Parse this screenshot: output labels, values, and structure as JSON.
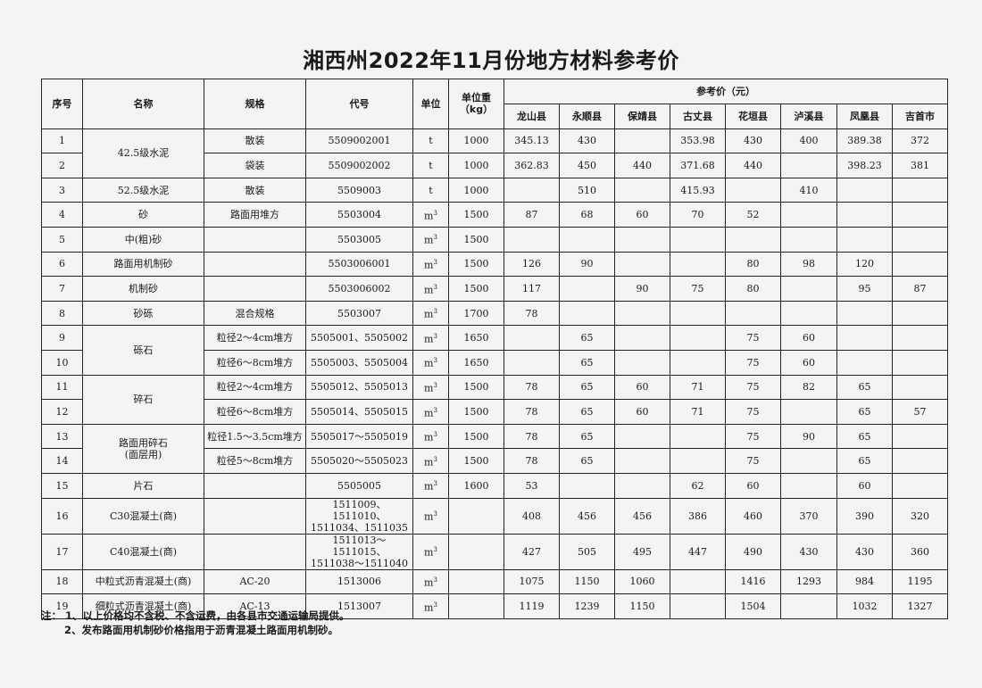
{
  "title": "湘西州2022年11月份地方材料参考价",
  "headers": {
    "seq": "序号",
    "name": "名称",
    "spec": "规格",
    "code": "代号",
    "unit": "单位",
    "unit_weight": "单位重\n（kg）",
    "price_group": "参考价（元）",
    "counties": [
      "龙山县",
      "永顺县",
      "保靖县",
      "古丈县",
      "花垣县",
      "泸溪县",
      "凤凰县",
      "吉首市"
    ]
  },
  "rows": [
    {
      "seq": "1",
      "name": "42.5级水泥",
      "spec": "散装",
      "code": "5509002001",
      "unit": "t",
      "weight": "1000",
      "prices": [
        "345.13",
        "430",
        "",
        "353.98",
        "430",
        "400",
        "389.38",
        "372"
      ]
    },
    {
      "seq": "2",
      "name": null,
      "spec": "袋装",
      "code": "5509002002",
      "unit": "t",
      "weight": "1000",
      "prices": [
        "362.83",
        "450",
        "440",
        "371.68",
        "440",
        "",
        "398.23",
        "381"
      ]
    },
    {
      "seq": "3",
      "name": "52.5级水泥",
      "spec": "散装",
      "code": "5509003",
      "unit": "t",
      "weight": "1000",
      "prices": [
        "",
        "510",
        "",
        "415.93",
        "",
        "410",
        "",
        ""
      ]
    },
    {
      "seq": "4",
      "name": "砂",
      "spec": "路面用堆方",
      "code": "5503004",
      "unit": "m3",
      "weight": "1500",
      "prices": [
        "87",
        "68",
        "60",
        "70",
        "52",
        "",
        "",
        ""
      ]
    },
    {
      "seq": "5",
      "name": "中(粗)砂",
      "spec": "",
      "code": "5503005",
      "unit": "m3",
      "weight": "1500",
      "prices": [
        "",
        "",
        "",
        "",
        "",
        "",
        "",
        ""
      ]
    },
    {
      "seq": "6",
      "name": "路面用机制砂",
      "spec": "",
      "code": "5503006001",
      "unit": "m3",
      "weight": "1500",
      "prices": [
        "126",
        "90",
        "",
        "",
        "80",
        "98",
        "120",
        ""
      ]
    },
    {
      "seq": "7",
      "name": "机制砂",
      "spec": "",
      "code": "5503006002",
      "unit": "m3",
      "weight": "1500",
      "prices": [
        "117",
        "",
        "90",
        "75",
        "80",
        "",
        "95",
        "87"
      ]
    },
    {
      "seq": "8",
      "name": "砂砾",
      "spec": "混合规格",
      "code": "5503007",
      "unit": "m3",
      "weight": "1700",
      "prices": [
        "78",
        "",
        "",
        "",
        "",
        "",
        "",
        ""
      ]
    },
    {
      "seq": "9",
      "name": "砾石",
      "spec": "粒径2～4cm堆方",
      "code": "5505001、5505002",
      "unit": "m3",
      "weight": "1650",
      "prices": [
        "",
        "65",
        "",
        "",
        "75",
        "60",
        "",
        ""
      ]
    },
    {
      "seq": "10",
      "name": null,
      "spec": "粒径6～8cm堆方",
      "code": "5505003、5505004",
      "unit": "m3",
      "weight": "1650",
      "prices": [
        "",
        "65",
        "",
        "",
        "75",
        "60",
        "",
        ""
      ]
    },
    {
      "seq": "11",
      "name": "碎石",
      "spec": "粒径2～4cm堆方",
      "code": "5505012、5505013",
      "unit": "m3",
      "weight": "1500",
      "prices": [
        "78",
        "65",
        "60",
        "71",
        "75",
        "82",
        "65",
        ""
      ]
    },
    {
      "seq": "12",
      "name": null,
      "spec": "粒径6～8cm堆方",
      "code": "5505014、5505015",
      "unit": "m3",
      "weight": "1500",
      "prices": [
        "78",
        "65",
        "60",
        "71",
        "75",
        "",
        "65",
        "57"
      ]
    },
    {
      "seq": "13",
      "name": "路面用碎石\n(面层用)",
      "spec": "粒径1.5～3.5cm堆方",
      "code": "5505017～5505019",
      "unit": "m3",
      "weight": "1500",
      "prices": [
        "78",
        "65",
        "",
        "",
        "75",
        "90",
        "65",
        ""
      ]
    },
    {
      "seq": "14",
      "name": null,
      "spec": "粒径5～8cm堆方",
      "code": "5505020～5505023",
      "unit": "m3",
      "weight": "1500",
      "prices": [
        "78",
        "65",
        "",
        "",
        "75",
        "",
        "65",
        ""
      ]
    },
    {
      "seq": "15",
      "name": "片石",
      "spec": "",
      "code": "5505005",
      "unit": "m3",
      "weight": "1600",
      "prices": [
        "53",
        "",
        "",
        "62",
        "60",
        "",
        "60",
        ""
      ]
    },
    {
      "seq": "16",
      "name": "C30混凝土(商)",
      "spec": "",
      "code": "1511009、1511010、\n1511034、1511035",
      "unit": "m3",
      "weight": "",
      "prices": [
        "408",
        "456",
        "456",
        "386",
        "460",
        "370",
        "390",
        "320"
      ]
    },
    {
      "seq": "17",
      "name": "C40混凝土(商)",
      "spec": "",
      "code": "1511013～1511015、\n1511038～1511040",
      "unit": "m3",
      "weight": "",
      "prices": [
        "427",
        "505",
        "495",
        "447",
        "490",
        "430",
        "430",
        "360"
      ]
    },
    {
      "seq": "18",
      "name": "中粒式沥青混凝土(商)",
      "spec": "AC-20",
      "code": "1513006",
      "unit": "m3",
      "weight": "",
      "prices": [
        "1075",
        "1150",
        "1060",
        "",
        "1416",
        "1293",
        "984",
        "1195"
      ]
    },
    {
      "seq": "19",
      "name": "细粒式沥青混凝土(商)",
      "spec": "AC-13",
      "code": "1513007",
      "unit": "m3",
      "weight": "",
      "prices": [
        "1119",
        "1239",
        "1150",
        "",
        "1504",
        "",
        "1032",
        "1327"
      ]
    }
  ],
  "notes": [
    "注： 1、以上价格均不含税、不含运费，由各县市交通运输局提供。",
    "2、发布路面用机制砂价格指用于沥青混凝土路面用机制砂。"
  ]
}
